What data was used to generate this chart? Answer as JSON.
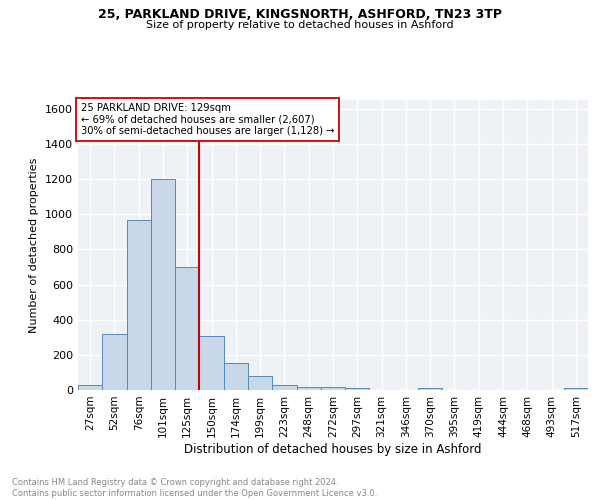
{
  "title1": "25, PARKLAND DRIVE, KINGSNORTH, ASHFORD, TN23 3TP",
  "title2": "Size of property relative to detached houses in Ashford",
  "xlabel": "Distribution of detached houses by size in Ashford",
  "ylabel": "Number of detached properties",
  "bin_labels": [
    "27sqm",
    "52sqm",
    "76sqm",
    "101sqm",
    "125sqm",
    "150sqm",
    "174sqm",
    "199sqm",
    "223sqm",
    "248sqm",
    "272sqm",
    "297sqm",
    "321sqm",
    "346sqm",
    "370sqm",
    "395sqm",
    "419sqm",
    "444sqm",
    "468sqm",
    "493sqm",
    "517sqm"
  ],
  "bin_values": [
    27,
    320,
    965,
    1200,
    700,
    305,
    155,
    80,
    27,
    15,
    15,
    13,
    0,
    0,
    13,
    0,
    0,
    0,
    0,
    0,
    13
  ],
  "bar_color": "#c8d8e8",
  "bar_edge_color": "#5588bb",
  "vline_x": 4.5,
  "vline_color": "#cc0000",
  "annotation_text": "25 PARKLAND DRIVE: 129sqm\n← 69% of detached houses are smaller (2,607)\n30% of semi-detached houses are larger (1,128) →",
  "annotation_box_color": "#ffffff",
  "annotation_box_edge": "#cc0000",
  "ylim": [
    0,
    1650
  ],
  "yticks": [
    0,
    200,
    400,
    600,
    800,
    1000,
    1200,
    1400,
    1600
  ],
  "footnote": "Contains HM Land Registry data © Crown copyright and database right 2024.\nContains public sector information licensed under the Open Government Licence v3.0.",
  "bg_color": "#eef2f7",
  "grid_color": "#ffffff"
}
